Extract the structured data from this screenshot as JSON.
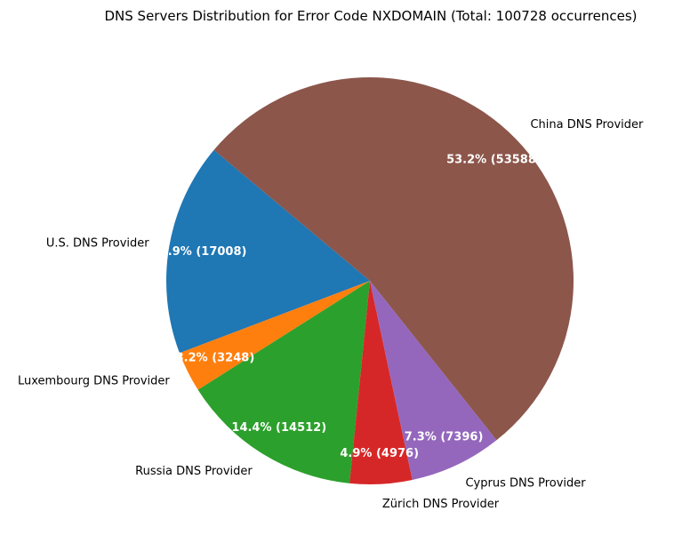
{
  "chart_data": {
    "type": "pie",
    "title": "DNS Servers Distribution for Error Code NXDOMAIN (Total: 100728 occurrences)",
    "slices": [
      {
        "label": "U.S. DNS Provider",
        "value": 17008,
        "pct_text": "16.9% (17008)",
        "color": "#1f77b4"
      },
      {
        "label": "Luxembourg DNS Provider",
        "value": 3248,
        "pct_text": "3.2% (3248)",
        "color": "#ff7f0e"
      },
      {
        "label": "Russia DNS Provider",
        "value": 14512,
        "pct_text": "14.4% (14512)",
        "color": "#2ca02c"
      },
      {
        "label": "Zürich DNS Provider",
        "value": 4976,
        "pct_text": "4.9% (4976)",
        "color": "#d62728"
      },
      {
        "label": "Cyprus DNS Provider",
        "value": 7396,
        "pct_text": "7.3% (7396)",
        "color": "#9467bd"
      },
      {
        "label": "China DNS Provider",
        "value": 53588,
        "pct_text": "53.2% (53588)",
        "color": "#8c564b"
      }
    ],
    "start_angle_deg": 140,
    "direction": "counterclockwise"
  }
}
